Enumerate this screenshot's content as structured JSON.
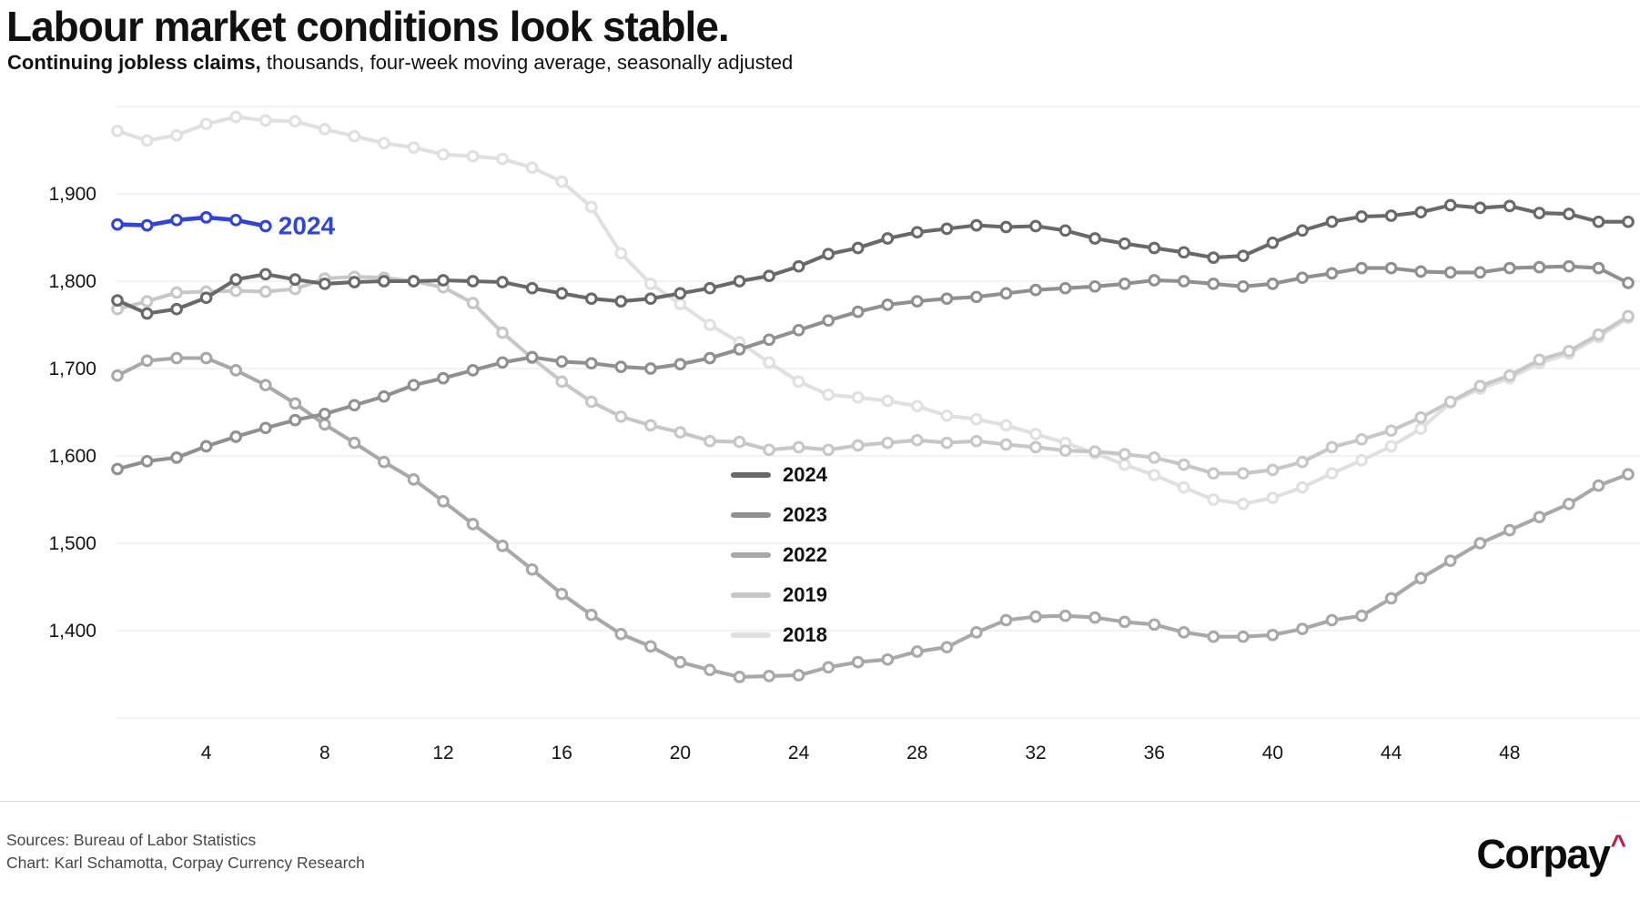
{
  "header": {
    "title": "Labour market conditions look stable.",
    "subtitle_bold": "Continuing jobless claims,",
    "subtitle_rest": " thousands, four-week moving average, seasonally adjusted"
  },
  "chart_data": {
    "type": "line",
    "x_unit": "week of year",
    "xlim": [
      1,
      52
    ],
    "ylim": [
      1300,
      2013
    ],
    "grid": true,
    "grid_values": [
      1300,
      1400,
      1500,
      1600,
      1700,
      1800,
      1900,
      2000
    ],
    "y_ticks": [
      1400,
      1500,
      1600,
      1700,
      1800,
      1900
    ],
    "x_ticks": [
      4,
      8,
      12,
      16,
      20,
      24,
      28,
      32,
      36,
      40,
      44,
      48
    ],
    "legend_position": "center-right",
    "legend": [
      {
        "label": "2024",
        "color": "#696969"
      },
      {
        "label": "2023",
        "color": "#909090"
      },
      {
        "label": "2022",
        "color": "#a8a8a8"
      },
      {
        "label": "2019",
        "color": "#c7c7c7"
      },
      {
        "label": "2018",
        "color": "#e0e0e0"
      }
    ],
    "annotation": {
      "text": "2024",
      "week": 6,
      "value": 1863,
      "color": "#2f44df"
    },
    "series": [
      {
        "label": "2018",
        "color": "#e0e0e0",
        "start_week": 1,
        "values": [
          1972,
          1961,
          1967,
          1980,
          1988,
          1984,
          1983,
          1974,
          1966,
          1958,
          1953,
          1945,
          1943,
          1940,
          1930,
          1914,
          1885,
          1832,
          1797,
          1774,
          1750,
          1730,
          1707,
          1685,
          1670,
          1667,
          1663,
          1657,
          1646,
          1642,
          1635,
          1625,
          1615,
          1603,
          1590,
          1578,
          1564,
          1550,
          1545,
          1552,
          1564,
          1580,
          1595,
          1611,
          1631,
          1661,
          1677,
          1689,
          1706,
          1717,
          1736,
          1758
        ]
      },
      {
        "label": "2019",
        "color": "#c7c7c7",
        "start_week": 1,
        "values": [
          1768,
          1777,
          1787,
          1788,
          1789,
          1788,
          1791,
          1803,
          1805,
          1804,
          1800,
          1793,
          1775,
          1741,
          1712,
          1685,
          1662,
          1645,
          1635,
          1627,
          1617,
          1616,
          1607,
          1610,
          1607,
          1612,
          1615,
          1618,
          1615,
          1617,
          1613,
          1610,
          1606,
          1605,
          1602,
          1598,
          1590,
          1580,
          1580,
          1584,
          1593,
          1610,
          1619,
          1629,
          1644,
          1662,
          1680,
          1692,
          1710,
          1720,
          1739,
          1760
        ]
      },
      {
        "label": "2022",
        "color": "#a8a8a8",
        "start_week": 1,
        "values": [
          1692,
          1709,
          1712,
          1712,
          1698,
          1681,
          1660,
          1636,
          1615,
          1593,
          1573,
          1548,
          1522,
          1497,
          1470,
          1442,
          1418,
          1396,
          1382,
          1364,
          1355,
          1347,
          1348,
          1349,
          1358,
          1364,
          1367,
          1376,
          1381,
          1398,
          1412,
          1416,
          1417,
          1415,
          1410,
          1407,
          1398,
          1393,
          1393,
          1395,
          1402,
          1412,
          1417,
          1437,
          1460,
          1480,
          1500,
          1515,
          1530,
          1545,
          1566,
          1579
        ]
      },
      {
        "label": "2023",
        "color": "#909090",
        "start_week": 1,
        "values": [
          1585,
          1594,
          1598,
          1611,
          1622,
          1632,
          1641,
          1648,
          1658,
          1668,
          1681,
          1689,
          1698,
          1707,
          1713,
          1708,
          1706,
          1702,
          1700,
          1705,
          1712,
          1722,
          1733,
          1744,
          1755,
          1765,
          1773,
          1777,
          1780,
          1782,
          1786,
          1790,
          1792,
          1794,
          1797,
          1801,
          1800,
          1797,
          1794,
          1797,
          1804,
          1809,
          1815,
          1815,
          1811,
          1810,
          1810,
          1815,
          1816,
          1817,
          1815,
          1798
        ]
      },
      {
        "label": "2024",
        "color": "#696969",
        "start_week": 1,
        "values": [
          1778,
          1763,
          1768,
          1781,
          1802,
          1808,
          1802,
          1797,
          1799,
          1800,
          1800,
          1801,
          1800,
          1799,
          1792,
          1786,
          1780,
          1777,
          1780,
          1786,
          1792,
          1800,
          1806,
          1817,
          1831,
          1838,
          1849,
          1856,
          1860,
          1864,
          1862,
          1863,
          1858,
          1849,
          1843,
          1838,
          1833,
          1827,
          1829,
          1844,
          1858,
          1868,
          1874,
          1875,
          1879,
          1887,
          1884,
          1886,
          1878,
          1877,
          1868,
          1868
        ]
      },
      {
        "label": "2024",
        "color": "#2f44df",
        "highlight": true,
        "start_week": 1,
        "values": [
          1865,
          1864,
          1870,
          1873,
          1870,
          1863
        ]
      }
    ]
  },
  "footer": {
    "sources": "Sources: Bureau of Labor Statistics",
    "credit": "Chart: Karl Schamotta, Corpay Currency Research",
    "brand": {
      "text": "Corpay",
      "caret": "^",
      "caret_color": "#c41847"
    }
  }
}
